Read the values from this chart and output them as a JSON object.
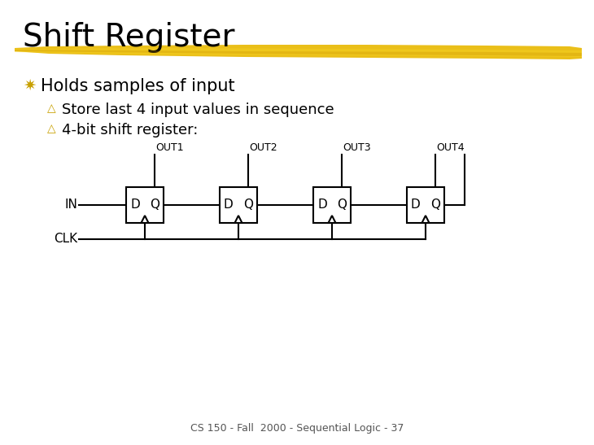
{
  "title": "Shift Register",
  "highlight_color": "#E8B800",
  "bullet_z_color": "#C8A000",
  "bullet_y_color": "#C8A000",
  "main_bullet": "Holds samples of input",
  "sub_bullets": [
    "Store last 4 input values in sequence",
    "4-bit shift register:"
  ],
  "footer": "CS 150 - Fall  2000 - Sequential Logic - 37",
  "background_color": "#FFFFFF",
  "text_color": "#000000",
  "out_labels": [
    "OUT1",
    "OUT2",
    "OUT3",
    "OUT4"
  ],
  "in_label": "IN",
  "clk_label": "CLK",
  "title_fontsize": 28,
  "main_bullet_fontsize": 15,
  "sub_bullet_fontsize": 13,
  "footer_fontsize": 9
}
